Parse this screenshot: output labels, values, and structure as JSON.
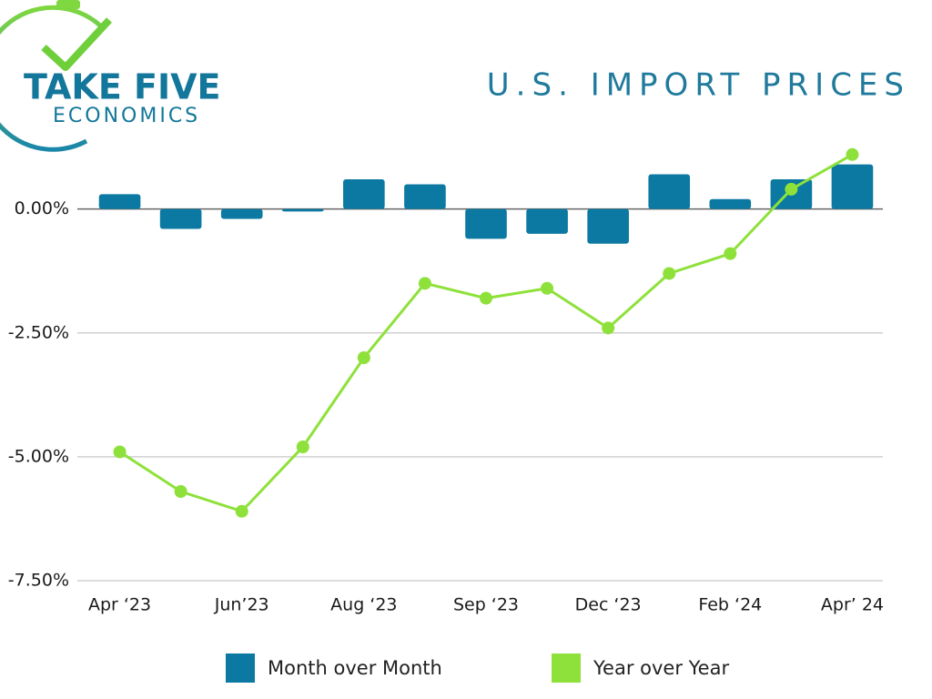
{
  "logo": {
    "line1": "TAKE FIVE",
    "line2": "ECONOMICS"
  },
  "chart_data": {
    "type": "bar",
    "title": "U.S. IMPORT PRICES",
    "categories": [
      "Apr ‘23",
      null,
      "Jun’23",
      null,
      "Aug ‘23",
      null,
      "Sep ‘23",
      null,
      "Dec ‘23",
      null,
      "Feb ‘24",
      null,
      "Apr’ 24"
    ],
    "series": [
      {
        "name": "Month over Month",
        "type": "bar",
        "color": "#0b79a1",
        "values": [
          0.3,
          -0.4,
          -0.2,
          -0.05,
          0.6,
          0.5,
          -0.6,
          -0.5,
          -0.7,
          0.7,
          0.2,
          0.6,
          0.9
        ]
      },
      {
        "name": "Year over Year",
        "type": "line",
        "color": "#8ee13a",
        "values": [
          -4.9,
          -5.7,
          -6.1,
          -4.8,
          -3.0,
          -1.5,
          -1.8,
          -1.6,
          -2.4,
          -1.3,
          -0.9,
          0.4,
          1.1
        ]
      }
    ],
    "ylim": [
      -7.5,
      1.5
    ],
    "yticks": [
      {
        "value": 0,
        "label": "0.00%"
      },
      {
        "value": -2.5,
        "label": "-2.50%"
      },
      {
        "value": -5,
        "label": "-5.00%"
      },
      {
        "value": -7.5,
        "label": "-7.50%"
      }
    ],
    "grid": true
  }
}
